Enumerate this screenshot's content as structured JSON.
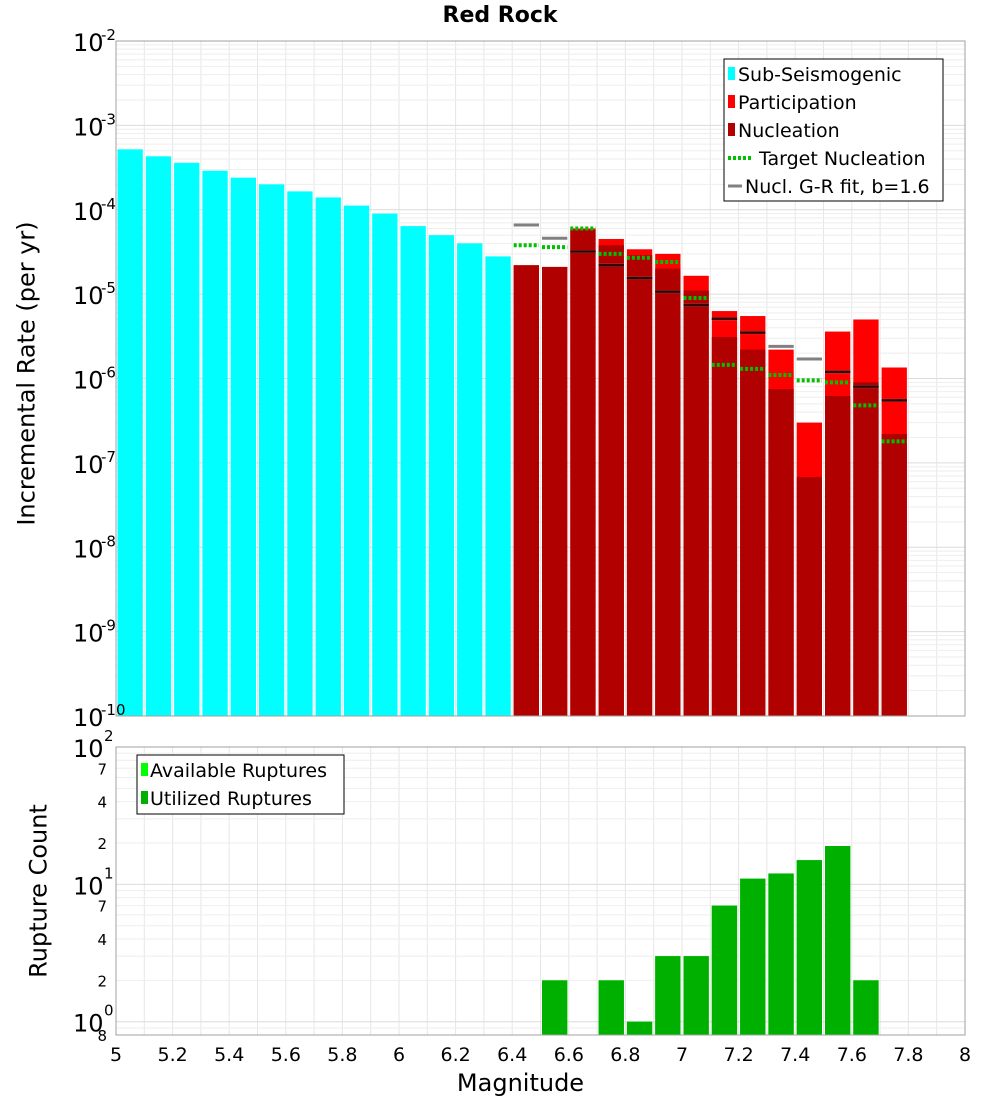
{
  "chart_data": [
    {
      "panel": "top",
      "type": "bar",
      "title": "Red Rock",
      "xlabel": "",
      "ylabel": "Incremental Rate (per yr)",
      "yscale": "log",
      "xlim": [
        5,
        8
      ],
      "ylim_exponents": [
        -10,
        -2
      ],
      "ytick_exponents": [
        -10,
        -9,
        -8,
        -7,
        -6,
        -5,
        -4,
        -3,
        -2
      ],
      "bin_width": 0.1,
      "series": [
        {
          "name": "Sub-Seismogenic",
          "color": "#00ffff",
          "points": [
            {
              "m": 5.05,
              "v": 0.00052
            },
            {
              "m": 5.15,
              "v": 0.00043
            },
            {
              "m": 5.25,
              "v": 0.00036
            },
            {
              "m": 5.35,
              "v": 0.00029
            },
            {
              "m": 5.45,
              "v": 0.00024
            },
            {
              "m": 5.55,
              "v": 0.0002
            },
            {
              "m": 5.65,
              "v": 0.000165
            },
            {
              "m": 5.75,
              "v": 0.00014
            },
            {
              "m": 5.85,
              "v": 0.000112
            },
            {
              "m": 5.95,
              "v": 9e-05
            },
            {
              "m": 6.05,
              "v": 6.4e-05
            },
            {
              "m": 6.15,
              "v": 5e-05
            },
            {
              "m": 6.25,
              "v": 4e-05
            },
            {
              "m": 6.35,
              "v": 2.8e-05
            }
          ]
        },
        {
          "name": "Participation",
          "color": "#ff0000",
          "points": [
            {
              "m": 6.45,
              "v": 2.2e-05
            },
            {
              "m": 6.55,
              "v": 2.1e-05
            },
            {
              "m": 6.65,
              "v": 6e-05
            },
            {
              "m": 6.75,
              "v": 4.5e-05
            },
            {
              "m": 6.85,
              "v": 3.4e-05
            },
            {
              "m": 6.95,
              "v": 3e-05
            },
            {
              "m": 7.05,
              "v": 1.65e-05
            },
            {
              "m": 7.15,
              "v": 6.3e-06
            },
            {
              "m": 7.25,
              "v": 5.5e-06
            },
            {
              "m": 7.35,
              "v": 2.2e-06
            },
            {
              "m": 7.45,
              "v": 3e-07
            },
            {
              "m": 7.55,
              "v": 3.6e-06
            },
            {
              "m": 7.65,
              "v": 5e-06
            },
            {
              "m": 7.75,
              "v": 1.35e-06
            }
          ]
        },
        {
          "name": "Nucleation",
          "color": "#b00000",
          "points": [
            {
              "m": 6.45,
              "v": 2.2e-05
            },
            {
              "m": 6.55,
              "v": 2.1e-05
            },
            {
              "m": 6.65,
              "v": 5.8e-05
            },
            {
              "m": 6.75,
              "v": 3.8e-05
            },
            {
              "m": 6.85,
              "v": 2.9e-05
            },
            {
              "m": 6.95,
              "v": 2e-05
            },
            {
              "m": 7.05,
              "v": 1.1e-05
            },
            {
              "m": 7.15,
              "v": 3.1e-06
            },
            {
              "m": 7.25,
              "v": 2.2e-06
            },
            {
              "m": 7.35,
              "v": 7.5e-07
            },
            {
              "m": 7.45,
              "v": 6.8e-08
            },
            {
              "m": 7.55,
              "v": 6.2e-07
            },
            {
              "m": 7.65,
              "v": 9e-07
            },
            {
              "m": 7.75,
              "v": 2.2e-07
            }
          ]
        },
        {
          "name": "Target Nucleation",
          "color": "#00c000",
          "style": "dotted",
          "points": [
            {
              "m": 6.45,
              "v": 3.8e-05
            },
            {
              "m": 6.55,
              "v": 3.6e-05
            },
            {
              "m": 6.65,
              "v": 6e-05
            },
            {
              "m": 6.75,
              "v": 3e-05
            },
            {
              "m": 6.85,
              "v": 2.7e-05
            },
            {
              "m": 6.95,
              "v": 2.4e-05
            },
            {
              "m": 7.05,
              "v": 9e-06
            },
            {
              "m": 7.15,
              "v": 1.45e-06
            },
            {
              "m": 7.25,
              "v": 1.3e-06
            },
            {
              "m": 7.35,
              "v": 1.1e-06
            },
            {
              "m": 7.45,
              "v": 9.5e-07
            },
            {
              "m": 7.55,
              "v": 9e-07
            },
            {
              "m": 7.65,
              "v": 4.8e-07
            },
            {
              "m": 7.75,
              "v": 1.8e-07
            }
          ]
        },
        {
          "name": "Nucl. G-R fit, b=1.6",
          "color": "#808080",
          "style": "solid",
          "points": [
            {
              "m": 6.45,
              "v": 6.6e-05
            },
            {
              "m": 6.55,
              "v": 4.6e-05
            },
            {
              "m": 6.65,
              "v": 3.2e-05
            },
            {
              "m": 6.75,
              "v": 2.2e-05
            },
            {
              "m": 6.85,
              "v": 1.55e-05
            },
            {
              "m": 6.95,
              "v": 1.07e-05
            },
            {
              "m": 7.05,
              "v": 7.4e-06
            },
            {
              "m": 7.15,
              "v": 5.1e-06
            },
            {
              "m": 7.25,
              "v": 3.5e-06
            },
            {
              "m": 7.35,
              "v": 2.4e-06
            },
            {
              "m": 7.45,
              "v": 1.7e-06
            },
            {
              "m": 7.55,
              "v": 1.2e-06
            },
            {
              "m": 7.65,
              "v": 8e-07
            },
            {
              "m": 7.75,
              "v": 5.5e-07
            }
          ]
        }
      ],
      "legend": {
        "placement": "top-right",
        "entries": [
          "Sub-Seismogenic",
          "Participation",
          "Nucleation",
          "Target Nucleation",
          "Nucl. G-R fit, b=1.6"
        ]
      }
    },
    {
      "panel": "bottom",
      "type": "bar",
      "xlabel": "Magnitude",
      "ylabel": "Rupture Count",
      "yscale": "log",
      "xlim": [
        5,
        8
      ],
      "ylim": [
        0.8,
        100
      ],
      "xticks": [
        "5",
        "5.2",
        "5.4",
        "5.6",
        "5.8",
        "6",
        "6.2",
        "6.4",
        "6.6",
        "6.8",
        "7",
        "7.2",
        "7.4",
        "7.6",
        "7.8",
        "8"
      ],
      "yminor_labels": [
        {
          "value": 0.8,
          "label": "8"
        },
        {
          "value": 2,
          "label": "2"
        },
        {
          "value": 4,
          "label": "4"
        },
        {
          "value": 7,
          "label": "7"
        },
        {
          "value": 20,
          "label": "2"
        },
        {
          "value": 40,
          "label": "4"
        },
        {
          "value": 70,
          "label": "7"
        }
      ],
      "ymajor": [
        {
          "value": 1,
          "base": "10",
          "exp": "0"
        },
        {
          "value": 10,
          "base": "10",
          "exp": "1"
        },
        {
          "value": 100,
          "base": "10",
          "exp": "2"
        }
      ],
      "bin_width": 0.1,
      "series": [
        {
          "name": "Available Ruptures",
          "color": "#00ff00",
          "points": [
            {
              "m": 6.55,
              "v": 2
            },
            {
              "m": 6.75,
              "v": 2
            },
            {
              "m": 6.85,
              "v": 1
            },
            {
              "m": 6.95,
              "v": 3
            },
            {
              "m": 7.05,
              "v": 3
            },
            {
              "m": 7.15,
              "v": 7
            },
            {
              "m": 7.25,
              "v": 11
            },
            {
              "m": 7.35,
              "v": 12
            },
            {
              "m": 7.45,
              "v": 15
            },
            {
              "m": 7.55,
              "v": 19
            },
            {
              "m": 7.65,
              "v": 2
            }
          ]
        },
        {
          "name": "Utilized Ruptures",
          "color": "#00b000",
          "points": [
            {
              "m": 6.55,
              "v": 2
            },
            {
              "m": 6.75,
              "v": 2
            },
            {
              "m": 6.85,
              "v": 1
            },
            {
              "m": 6.95,
              "v": 3
            },
            {
              "m": 7.05,
              "v": 3
            },
            {
              "m": 7.15,
              "v": 7
            },
            {
              "m": 7.25,
              "v": 11
            },
            {
              "m": 7.35,
              "v": 12
            },
            {
              "m": 7.45,
              "v": 15
            },
            {
              "m": 7.55,
              "v": 19
            },
            {
              "m": 7.65,
              "v": 2
            }
          ]
        }
      ],
      "legend": {
        "placement": "top-left",
        "entries": [
          "Available Ruptures",
          "Utilized Ruptures"
        ]
      }
    }
  ]
}
